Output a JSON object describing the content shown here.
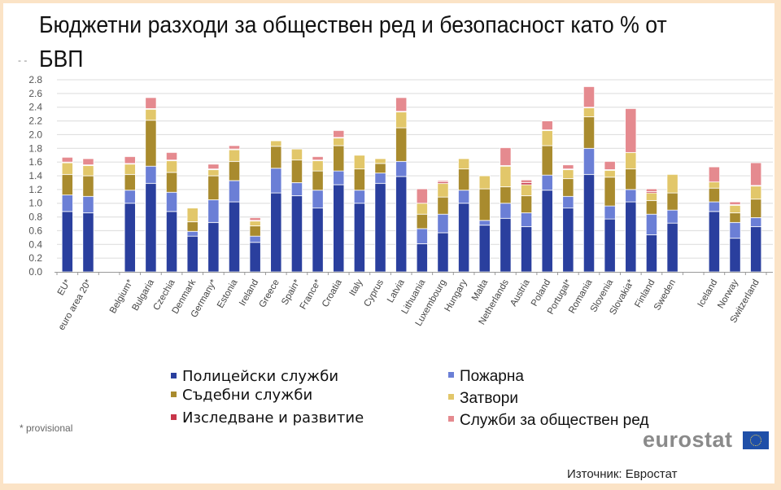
{
  "title": "Бюджетни разходи за обществен ред и безопасност като % от БВП",
  "note": "* provisional",
  "brand": "eurostat",
  "source": "Източник: Евростат",
  "legend": {
    "left": [
      {
        "key": "police",
        "label": "Полицейски служби",
        "color": "#2a3f9e"
      },
      {
        "key": "courts",
        "label": "Съдебни служби",
        "color": "#a98b2e"
      },
      {
        "key": "rnd",
        "label": "Изследване и развитие",
        "color": "#c8364a"
      }
    ],
    "right": [
      {
        "key": "fire",
        "label": "Пожарна",
        "color": "#6b7fd6"
      },
      {
        "key": "prisons",
        "label": "Затвори",
        "color": "#e2c76a"
      },
      {
        "key": "other",
        "label": "Служби за обществен ред",
        "color": "#e58a8f"
      }
    ]
  },
  "chart_data": {
    "type": "bar",
    "stacked": true,
    "title": "Бюджетни разходи за обществен ред и безопасност като % от БВП",
    "xlabel": "",
    "ylabel": "",
    "ylim": [
      0,
      2.8
    ],
    "yticks": [
      "0.0",
      "0.2",
      "0.4",
      "0.6",
      "0.8",
      "1.0",
      "1.2",
      "1.4",
      "1.6",
      "1.8",
      "2.0",
      "2.2",
      "2.4",
      "2.6",
      "2.8"
    ],
    "grid": true,
    "legend_position": "bottom",
    "categories": [
      "EU*",
      "euro area 20*",
      "",
      "Belgium*",
      "Bulgaria",
      "Czechia",
      "Denmark",
      "Germany*",
      "Estonia",
      "Ireland",
      "Greece",
      "Spain*",
      "France*",
      "Croatia",
      "Italy",
      "Cyprus",
      "Latvia",
      "Lithuania",
      "Luxembourg",
      "Hungary",
      "Malta",
      "Netherlands",
      "Austria",
      "Poland",
      "Portugal*",
      "Romania",
      "Slovenia",
      "Slovakia*",
      "Finland",
      "Sweden",
      "",
      "Iceland",
      "Norway",
      "Switzerland"
    ],
    "series": [
      {
        "name": "Полицейски служби",
        "key": "police",
        "color": "#2a3f9e",
        "values": [
          0.88,
          0.86,
          null,
          1.0,
          1.29,
          0.88,
          0.52,
          0.72,
          1.02,
          0.43,
          1.15,
          1.11,
          0.93,
          1.27,
          1.0,
          1.29,
          1.39,
          0.41,
          0.57,
          1.0,
          0.68,
          0.78,
          0.66,
          1.19,
          0.93,
          1.42,
          0.77,
          1.02,
          0.54,
          0.71,
          null,
          0.88,
          0.49,
          0.66
        ]
      },
      {
        "name": "Пожарна",
        "key": "fire",
        "color": "#6b7fd6",
        "values": [
          0.24,
          0.24,
          null,
          0.19,
          0.25,
          0.28,
          0.07,
          0.33,
          0.31,
          0.09,
          0.36,
          0.19,
          0.26,
          0.2,
          0.19,
          0.15,
          0.22,
          0.22,
          0.27,
          0.19,
          0.07,
          0.22,
          0.2,
          0.22,
          0.17,
          0.38,
          0.19,
          0.18,
          0.3,
          0.19,
          null,
          0.14,
          0.23,
          0.13
        ]
      },
      {
        "name": "Съдебни служби",
        "key": "courts",
        "color": "#a98b2e",
        "values": [
          0.3,
          0.3,
          null,
          0.23,
          0.67,
          0.29,
          0.14,
          0.35,
          0.28,
          0.15,
          0.32,
          0.33,
          0.28,
          0.37,
          0.31,
          0.14,
          0.49,
          0.21,
          0.25,
          0.31,
          0.46,
          0.24,
          0.25,
          0.43,
          0.26,
          0.46,
          0.42,
          0.3,
          0.2,
          0.25,
          null,
          0.2,
          0.14,
          0.27
        ]
      },
      {
        "name": "Затвори",
        "key": "prisons",
        "color": "#e2c76a",
        "values": [
          0.17,
          0.15,
          null,
          0.15,
          0.16,
          0.17,
          0.2,
          0.09,
          0.17,
          0.07,
          0.08,
          0.16,
          0.15,
          0.11,
          0.2,
          0.07,
          0.23,
          0.16,
          0.2,
          0.15,
          0.19,
          0.3,
          0.16,
          0.22,
          0.13,
          0.13,
          0.1,
          0.24,
          0.11,
          0.27,
          null,
          0.09,
          0.11,
          0.19
        ]
      },
      {
        "name": "Изследване и развитие",
        "key": "rnd",
        "color": "#c8364a",
        "values": [
          0.01,
          0.01,
          null,
          0.01,
          0.01,
          0.01,
          0.0,
          0.01,
          0.01,
          0.01,
          0.0,
          0.0,
          0.01,
          0.01,
          0.0,
          0.0,
          0.01,
          0.0,
          0.02,
          0.0,
          0.0,
          0.01,
          0.03,
          0.01,
          0.01,
          0.01,
          0.01,
          0.0,
          0.02,
          0.0,
          null,
          0.0,
          0.01,
          0.01
        ]
      },
      {
        "name": "Служби за обществен ред",
        "key": "other",
        "color": "#e58a8f",
        "values": [
          0.07,
          0.09,
          null,
          0.1,
          0.16,
          0.11,
          0.0,
          0.07,
          0.05,
          0.04,
          0.0,
          0.0,
          0.05,
          0.1,
          0.0,
          0.0,
          0.2,
          0.21,
          0.02,
          0.0,
          0.0,
          0.26,
          0.04,
          0.13,
          0.06,
          0.3,
          0.12,
          0.64,
          0.04,
          0.0,
          null,
          0.22,
          0.04,
          0.33
        ]
      }
    ]
  }
}
